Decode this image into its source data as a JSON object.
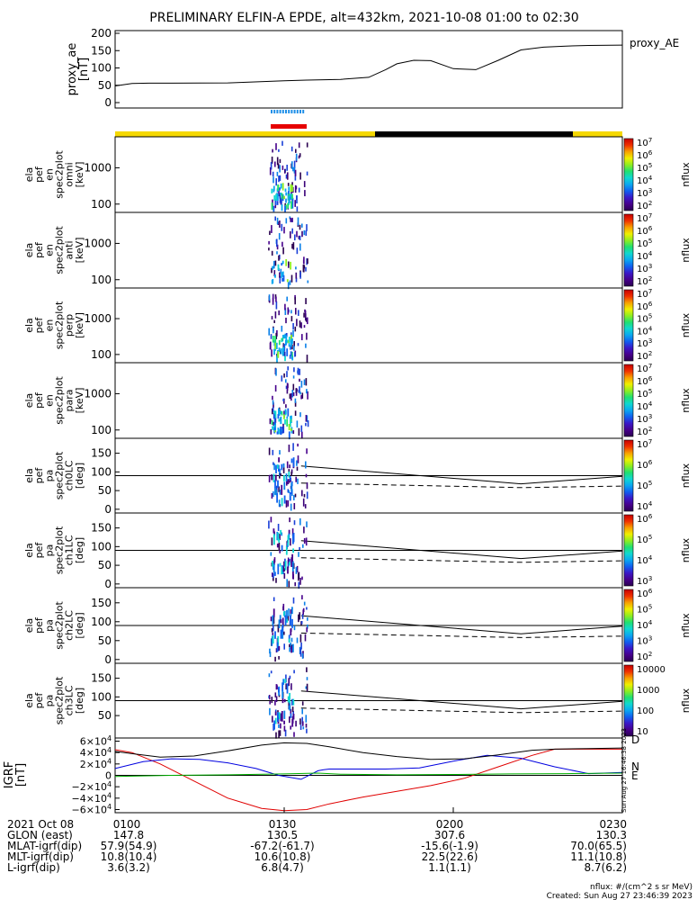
{
  "title": "PRELIMINARY ELFIN-A EPDE, alt=432km, 2021-10-08 01:00 to 02:30",
  "chart_data": {
    "type": "line",
    "time_range": [
      "01:00",
      "02:30"
    ],
    "proxy_ae": {
      "ylabel": "proxy_ae",
      "yunit": "[nT]",
      "legend": "proxy_AE",
      "yticks": [
        "200",
        "150",
        "100",
        "50",
        "0"
      ],
      "ylim": [
        0,
        200
      ],
      "x_min": [
        0,
        3,
        6,
        10,
        20,
        30,
        34,
        40,
        45,
        48,
        50,
        53,
        56,
        60,
        64,
        68,
        72,
        76,
        80,
        84,
        90
      ],
      "values": [
        48,
        55,
        56,
        56,
        57,
        63,
        65,
        67,
        73,
        95,
        112,
        122,
        121,
        98,
        95,
        122,
        152,
        160,
        163,
        165,
        166
      ]
    },
    "spectrogram_panels": [
      {
        "label": [
          "ela",
          "pef",
          "en",
          "spec2plot",
          "omni",
          "[keV]"
        ],
        "yticks": [
          "1000",
          "100"
        ],
        "cbar_ticks": [
          "10^7",
          "10^6",
          "10^5",
          "10^4",
          "10^3",
          "10^2"
        ],
        "cbar_label": "nflux"
      },
      {
        "label": [
          "ela",
          "pef",
          "en",
          "spec2plot",
          "anti",
          "[keV]"
        ],
        "yticks": [
          "1000",
          "100"
        ],
        "cbar_ticks": [
          "10^7",
          "10^6",
          "10^5",
          "10^4",
          "10^3",
          "10^2"
        ],
        "cbar_label": "nflux"
      },
      {
        "label": [
          "ela",
          "pef",
          "en",
          "spec2plot",
          "perp",
          "[keV]"
        ],
        "yticks": [
          "1000",
          "100"
        ],
        "cbar_ticks": [
          "10^7",
          "10^6",
          "10^5",
          "10^4",
          "10^3",
          "10^2"
        ],
        "cbar_label": "nflux"
      },
      {
        "label": [
          "ela",
          "pef",
          "en",
          "spec2plot",
          "para",
          "[keV]"
        ],
        "yticks": [
          "1000",
          "100"
        ],
        "cbar_ticks": [
          "10^7",
          "10^6",
          "10^5",
          "10^4",
          "10^3",
          "10^2"
        ],
        "cbar_label": "nflux"
      },
      {
        "label": [
          "ela",
          "pef",
          "pa",
          "spec2plot",
          "ch0LC",
          "[deg]"
        ],
        "yticks": [
          "150",
          "100",
          "50",
          "0"
        ],
        "cbar_ticks": [
          "10^7",
          "10^6",
          "10^5",
          "10^4"
        ],
        "cbar_label": "nflux"
      },
      {
        "label": [
          "ela",
          "pef",
          "pa",
          "spec2plot",
          "ch1LC",
          "[deg]"
        ],
        "yticks": [
          "150",
          "100",
          "50",
          "0"
        ],
        "cbar_ticks": [
          "10^6",
          "10^5",
          "10^4",
          "10^3"
        ],
        "cbar_label": "nflux"
      },
      {
        "label": [
          "ela",
          "pef",
          "pa",
          "spec2plot",
          "ch2LC",
          "[deg]"
        ],
        "yticks": [
          "150",
          "100",
          "50",
          "0"
        ],
        "cbar_ticks": [
          "10^6",
          "10^5",
          "10^4",
          "10^3",
          "10^2"
        ],
        "cbar_label": "nflux"
      },
      {
        "label": [
          "ela",
          "pef",
          "pa",
          "spec2plot",
          "ch3LC",
          "[deg]"
        ],
        "yticks": [
          "150",
          "100",
          "50"
        ],
        "cbar_ticks": [
          "10000",
          "1000",
          "100",
          "10"
        ],
        "cbar_label": "nflux"
      }
    ],
    "igrf": {
      "ylabel": "IGRF",
      "yunit": "[nT]",
      "yticks": [
        "6×10^4",
        "4×10^4",
        "2×10^4",
        "0",
        "−2×10^4",
        "−4×10^4",
        "−6×10^4"
      ],
      "ylim": [
        -60000,
        60000
      ],
      "legend": [
        "D",
        "N",
        "E"
      ],
      "series": [
        {
          "name": "D",
          "color": "#e00000",
          "x_min": [
            0,
            3,
            8,
            14,
            20,
            26,
            30,
            34,
            38,
            44,
            50,
            56,
            62,
            68,
            74,
            78,
            84,
            90
          ],
          "values": [
            45000,
            40000,
            20000,
            -10000,
            -40000,
            -58000,
            -62000,
            -60000,
            -50000,
            -38000,
            -28000,
            -18000,
            -5000,
            15000,
            35000,
            46000,
            46000,
            46000
          ]
        },
        {
          "name": "N",
          "color": "#0000e0",
          "x_min": [
            0,
            5,
            10,
            15,
            20,
            25,
            29,
            33,
            36,
            37,
            38,
            42,
            48,
            54,
            60,
            66,
            72,
            78,
            84,
            90
          ],
          "values": [
            12000,
            24000,
            29000,
            28000,
            22000,
            12000,
            0,
            -7000,
            8000,
            10000,
            11000,
            11000,
            11000,
            13000,
            25000,
            35000,
            30000,
            15000,
            3000,
            5000
          ]
        },
        {
          "name": "E",
          "color": "#00b000",
          "x_min": [
            0,
            10,
            20,
            30,
            36,
            40,
            50,
            60,
            70,
            80,
            90
          ],
          "values": [
            -2000,
            0,
            1000,
            2500,
            4000,
            2000,
            1000,
            1500,
            2500,
            3000,
            4000
          ]
        },
        {
          "name": "total",
          "color": "#000000",
          "x_min": [
            0,
            3,
            8,
            14,
            20,
            26,
            30,
            34,
            38,
            44,
            50,
            56,
            62,
            68,
            74,
            78,
            84,
            90
          ],
          "values": [
            42000,
            38000,
            32000,
            34000,
            43000,
            53000,
            57000,
            56000,
            50000,
            40000,
            33000,
            28000,
            29000,
            36000,
            44000,
            46000,
            47000,
            48000
          ]
        }
      ]
    },
    "lc_lines": {
      "solid_deg": {
        "x_min": [
          33,
          72,
          90
        ],
        "values": [
          116,
          68,
          88
        ]
      },
      "dashed_deg": {
        "x_min": [
          33,
          72,
          90
        ],
        "values": [
          70,
          58,
          62
        ]
      }
    }
  },
  "footer": {
    "rows": [
      {
        "label": "2021 Oct 08",
        "values": [
          "0100",
          "0130",
          "0200",
          "0230"
        ]
      },
      {
        "label": "GLON (east)",
        "values": [
          "147.8",
          "130.5",
          "307.6",
          "130.3"
        ]
      },
      {
        "label": "MLAT-igrf(dip)",
        "values": [
          "57.9(54.9)",
          "-67.2(-61.7)",
          "-15.6(-1.9)",
          "70.0(65.5)"
        ]
      },
      {
        "label": "MLT-igrf(dip)",
        "values": [
          "10.8(10.4)",
          "10.6(10.8)",
          "22.5(22.6)",
          "11.1(10.8)"
        ]
      },
      {
        "label": "L-igrf(dip)",
        "values": [
          "3.6(3.2)",
          "6.8(4.7)",
          "1.1(1.1)",
          "8.7(6.2)"
        ]
      }
    ],
    "units_note": "nflux: #/(cm^2 s sr MeV)",
    "created": "Created: Sun Aug 27 23:46:39 2023",
    "side_stamp": "Sun Aug 27 16:46:38 2023"
  },
  "colors": {
    "sunlight": "#f5d800",
    "eclipse": "#000000",
    "ibo_blue": "#1f8fe8",
    "obo_red": "#e60000"
  }
}
